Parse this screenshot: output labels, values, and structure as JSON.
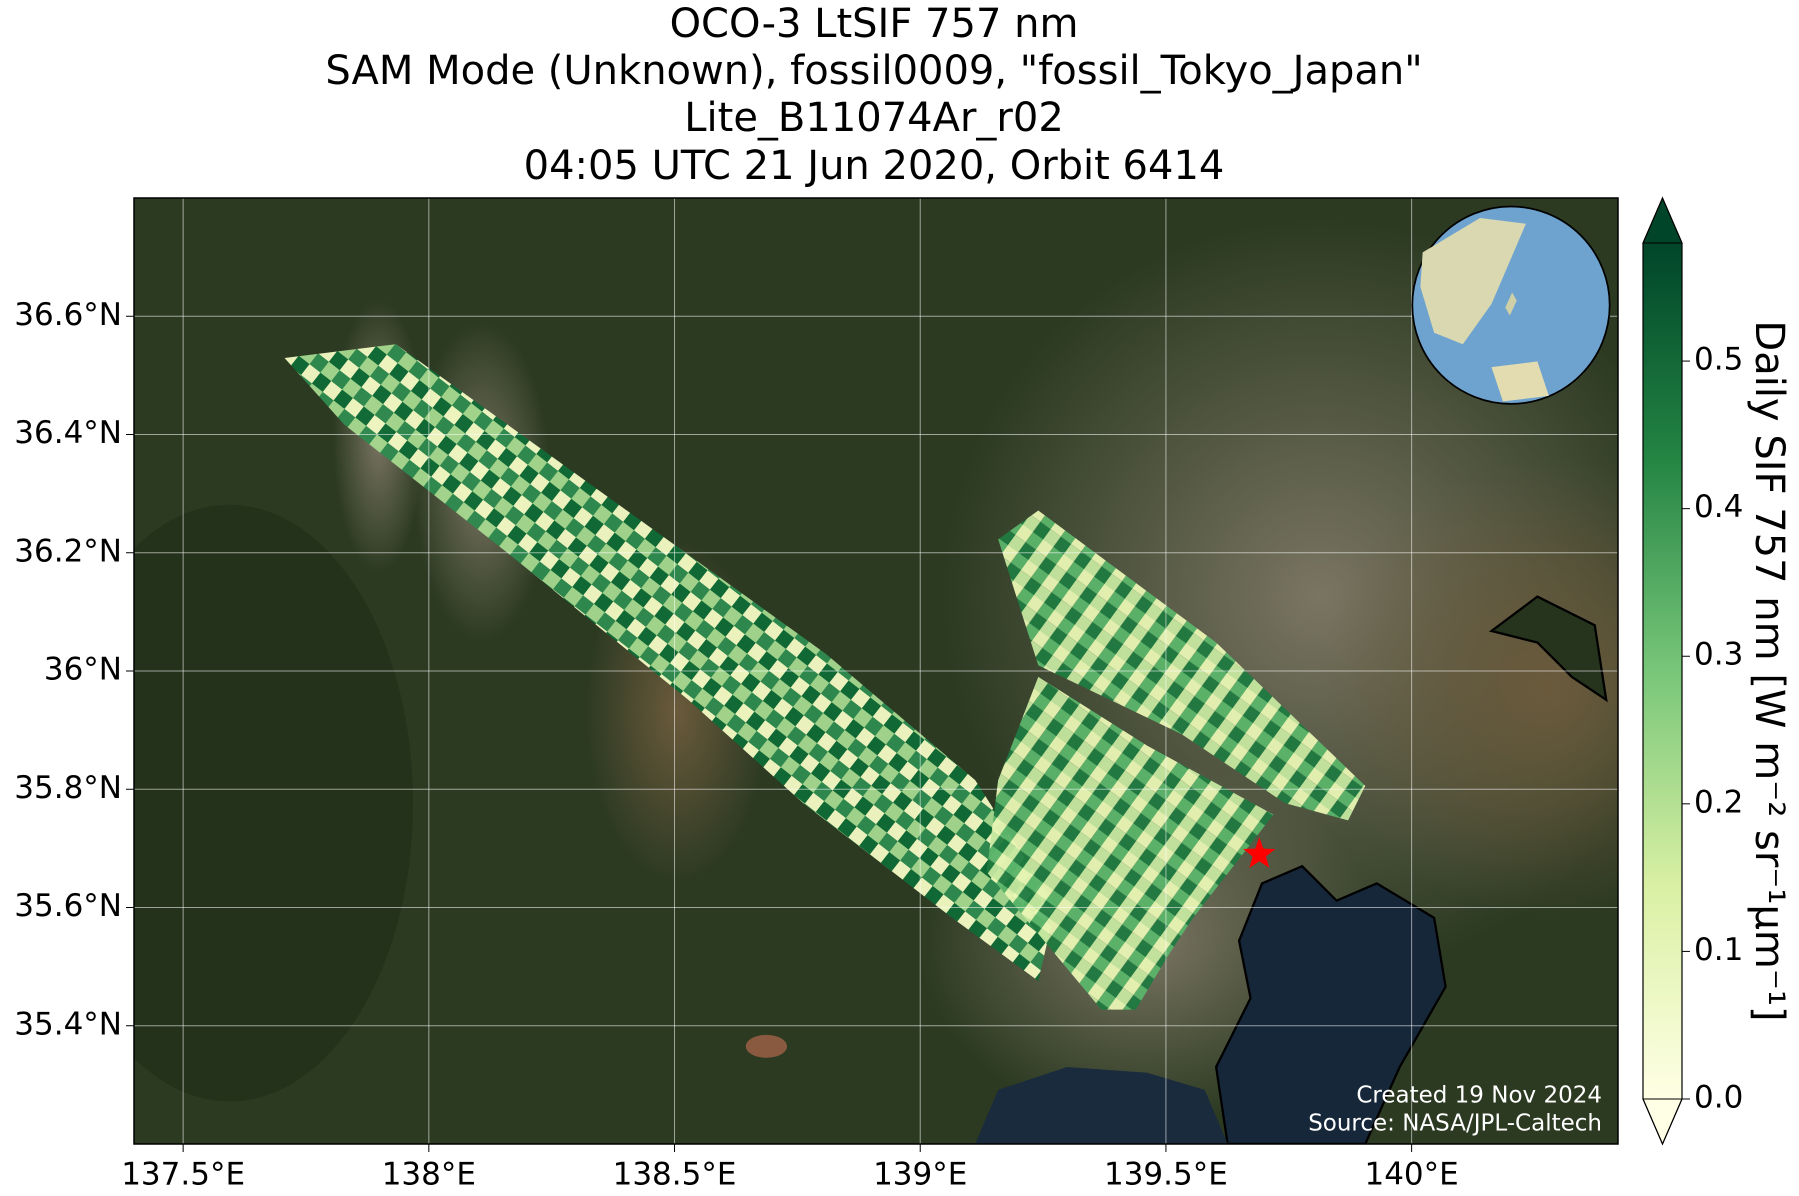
{
  "chart_data": {
    "type": "map",
    "title": "OCO-3 LtSIF 757 nm",
    "subtitle": [
      "SAM Mode (Unknown), fossil0009, \"fossil_Tokyo_Japan\"",
      "Lite_B11074Ar_r02",
      "04:05 UTC 21 Jun 2020, Orbit 6414"
    ],
    "xlim": [
      137.4,
      140.42
    ],
    "ylim": [
      35.2,
      36.8
    ],
    "xticks": [
      {
        "value": 137.5,
        "label": "137.5°E"
      },
      {
        "value": 138,
        "label": "138°E"
      },
      {
        "value": 138.5,
        "label": "138.5°E"
      },
      {
        "value": 139,
        "label": "139°E"
      },
      {
        "value": 139.5,
        "label": "139.5°E"
      },
      {
        "value": 140,
        "label": "140°E"
      }
    ],
    "yticks": [
      {
        "value": 35.4,
        "label": "35.4°N"
      },
      {
        "value": 35.6,
        "label": "35.6°N"
      },
      {
        "value": 35.8,
        "label": "35.8°N"
      },
      {
        "value": 36,
        "label": "36°N"
      },
      {
        "value": 36.2,
        "label": "36.2°N"
      },
      {
        "value": 36.4,
        "label": "36.4°N"
      },
      {
        "value": 36.6,
        "label": "36.6°N"
      }
    ],
    "grid": true,
    "target": {
      "lon": 139.69,
      "lat": 35.69,
      "color": "#ff0000"
    },
    "colorbar": {
      "label": "Daily SIF 757 nm [W m⁻² sr⁻¹μm⁻¹]",
      "lim": [
        0,
        0.58
      ],
      "ticks": [
        {
          "value": 0,
          "label": "0.0"
        },
        0.1,
        0.2,
        0.3,
        0.4,
        0.5
      ]
    },
    "annotations": [
      "Created 19 Nov 2024",
      "Source: NASA/JPL-Caltech"
    ]
  }
}
